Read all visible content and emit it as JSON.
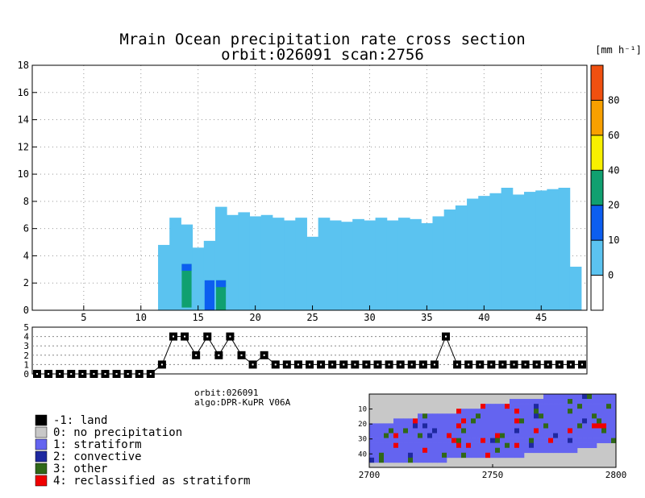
{
  "title_line1": "Mrain Ocean precipitation rate cross section",
  "title_line2": "orbit:026091     scan:2756",
  "colorbar": {
    "unit_label": "[mm h⁻¹]",
    "ticks": [
      "0",
      "10",
      "20",
      "40",
      "60",
      "80"
    ],
    "colors": [
      "#ffffff",
      "#5bc3f0",
      "#0c5ef0",
      "#10a070",
      "#f8f000",
      "#f8a000",
      "#f05010"
    ]
  },
  "info": {
    "orbit": "orbit:026091",
    "algo": "algo:DPR-KuPR V06A"
  },
  "legend": [
    {
      "label": "-1: land",
      "color": "#000000"
    },
    {
      "label": "0: no precipitation",
      "color": "#c8c8c8"
    },
    {
      "label": "1: stratiform",
      "color": "#6464f0"
    },
    {
      "label": "2: convective",
      "color": "#1e28a0"
    },
    {
      "label": "3: other",
      "color": "#306818"
    },
    {
      "label": "4: reclassified as stratiform",
      "color": "#f00000"
    }
  ],
  "chart_data": [
    {
      "type": "heatmap",
      "title": "Mrain Ocean precipitation rate cross section",
      "xlim": [
        1,
        49
      ],
      "ylim": [
        0,
        18
      ],
      "xticks": [
        5,
        10,
        15,
        20,
        25,
        30,
        35,
        40,
        45
      ],
      "yticks": [
        0,
        2,
        4,
        6,
        8,
        10,
        12,
        14,
        16,
        18
      ],
      "grid": true,
      "columns_echo_top_km": [
        {
          "x": 12,
          "top": 4.8
        },
        {
          "x": 13,
          "top": 6.8
        },
        {
          "x": 14,
          "top": 6.3
        },
        {
          "x": 15,
          "top": 4.6
        },
        {
          "x": 16,
          "top": 5.1
        },
        {
          "x": 17,
          "top": 7.6
        },
        {
          "x": 18,
          "top": 7.0
        },
        {
          "x": 19,
          "top": 7.2
        },
        {
          "x": 20,
          "top": 6.9
        },
        {
          "x": 21,
          "top": 7.0
        },
        {
          "x": 22,
          "top": 6.8
        },
        {
          "x": 23,
          "top": 6.6
        },
        {
          "x": 24,
          "top": 6.8
        },
        {
          "x": 25,
          "top": 5.4
        },
        {
          "x": 26,
          "top": 6.8
        },
        {
          "x": 27,
          "top": 6.6
        },
        {
          "x": 28,
          "top": 6.5
        },
        {
          "x": 29,
          "top": 6.7
        },
        {
          "x": 30,
          "top": 6.6
        },
        {
          "x": 31,
          "top": 6.8
        },
        {
          "x": 32,
          "top": 6.6
        },
        {
          "x": 33,
          "top": 6.8
        },
        {
          "x": 34,
          "top": 6.7
        },
        {
          "x": 35,
          "top": 6.4
        },
        {
          "x": 36,
          "top": 6.9
        },
        {
          "x": 37,
          "top": 7.4
        },
        {
          "x": 38,
          "top": 7.7
        },
        {
          "x": 39,
          "top": 8.2
        },
        {
          "x": 40,
          "top": 8.4
        },
        {
          "x": 41,
          "top": 8.6
        },
        {
          "x": 42,
          "top": 9.0
        },
        {
          "x": 43,
          "top": 8.5
        },
        {
          "x": 44,
          "top": 8.7
        },
        {
          "x": 45,
          "top": 8.8
        },
        {
          "x": 46,
          "top": 8.9
        },
        {
          "x": 47,
          "top": 9.0
        },
        {
          "x": 48,
          "top": 3.2
        }
      ],
      "intense_cores": [
        {
          "x": 14,
          "bottom": 0.2,
          "top": 3.4,
          "class": "20-40",
          "cap": "10-20"
        },
        {
          "x": 16,
          "bottom": 0.0,
          "top": 2.2,
          "class": "10-20"
        },
        {
          "x": 17,
          "bottom": 0.0,
          "top": 2.2,
          "class": "20-40",
          "cap": "10-20"
        }
      ]
    },
    {
      "type": "line",
      "ylim": [
        0,
        5
      ],
      "yticks": [
        0,
        1,
        2,
        3,
        4,
        5
      ],
      "x": [
        1,
        2,
        3,
        4,
        5,
        6,
        7,
        8,
        9,
        10,
        11,
        12,
        13,
        14,
        15,
        16,
        17,
        18,
        19,
        20,
        21,
        22,
        23,
        24,
        25,
        26,
        27,
        28,
        29,
        30,
        31,
        32,
        33,
        34,
        35,
        36,
        37,
        38,
        39,
        40,
        41,
        42,
        43,
        44,
        45,
        46,
        47,
        48,
        49
      ],
      "values": [
        0,
        0,
        0,
        0,
        0,
        0,
        0,
        0,
        0,
        0,
        0,
        1,
        4,
        4,
        2,
        4,
        2,
        4,
        2,
        1,
        2,
        1,
        1,
        1,
        1,
        1,
        1,
        1,
        1,
        1,
        1,
        1,
        1,
        1,
        1,
        1,
        4,
        1,
        1,
        1,
        1,
        1,
        1,
        1,
        1,
        1,
        1,
        1,
        1
      ]
    },
    {
      "type": "heatmap",
      "xticks": [
        2700,
        2750,
        2800
      ],
      "yticks": [
        10,
        20,
        30,
        40
      ]
    }
  ]
}
